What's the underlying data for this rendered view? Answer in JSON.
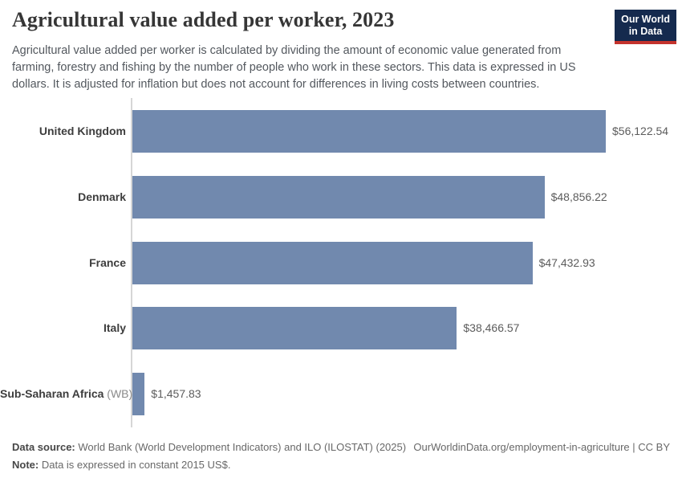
{
  "header": {
    "title": "Agricultural value added per worker, 2023",
    "subtitle": "Agricultural value added per worker is calculated by dividing the amount of economic value generated from farming, forestry and fishing by the number of people who work in these sectors. This data is expressed in US dollars. It is adjusted for inflation but does not account for differences in living costs between countries.",
    "logo": {
      "line1": "Our World",
      "line2": "in Data",
      "bg_color": "#152a4e",
      "accent_color": "#c4332d"
    }
  },
  "chart_data": {
    "type": "bar",
    "orientation": "horizontal",
    "title": "Agricultural value added per worker, 2023",
    "unit": "constant 2015 US$",
    "categories": [
      "United Kingdom",
      "Denmark",
      "France",
      "Italy",
      "Sub-Saharan Africa (WB)"
    ],
    "values": [
      56122.54,
      48856.22,
      47432.93,
      38466.57,
      1457.83
    ],
    "xlim": [
      0,
      56122.54
    ],
    "grid": false,
    "legend": "none",
    "bar_color": "#7189ae",
    "axis_color": "#d6d6d6",
    "bars": [
      {
        "label": "United Kingdom",
        "suffix": "",
        "value": 56122.54,
        "value_label": "$56,122.54"
      },
      {
        "label": "Denmark",
        "suffix": "",
        "value": 48856.22,
        "value_label": "$48,856.22"
      },
      {
        "label": "France",
        "suffix": "",
        "value": 47432.93,
        "value_label": "$47,432.93"
      },
      {
        "label": "Italy",
        "suffix": "",
        "value": 38466.57,
        "value_label": "$38,466.57"
      },
      {
        "label": "Sub-Saharan Africa",
        "suffix": " (WB)",
        "value": 1457.83,
        "value_label": "$1,457.83"
      }
    ]
  },
  "footer": {
    "source_label": "Data source:",
    "source_text": "World Bank (World Development Indicators) and ILO (ILOSTAT) (2025)",
    "link": "OurWorldinData.org/employment-in-agriculture | CC BY",
    "note_label": "Note:",
    "note_text": "Data is expressed in constant 2015 US$."
  }
}
